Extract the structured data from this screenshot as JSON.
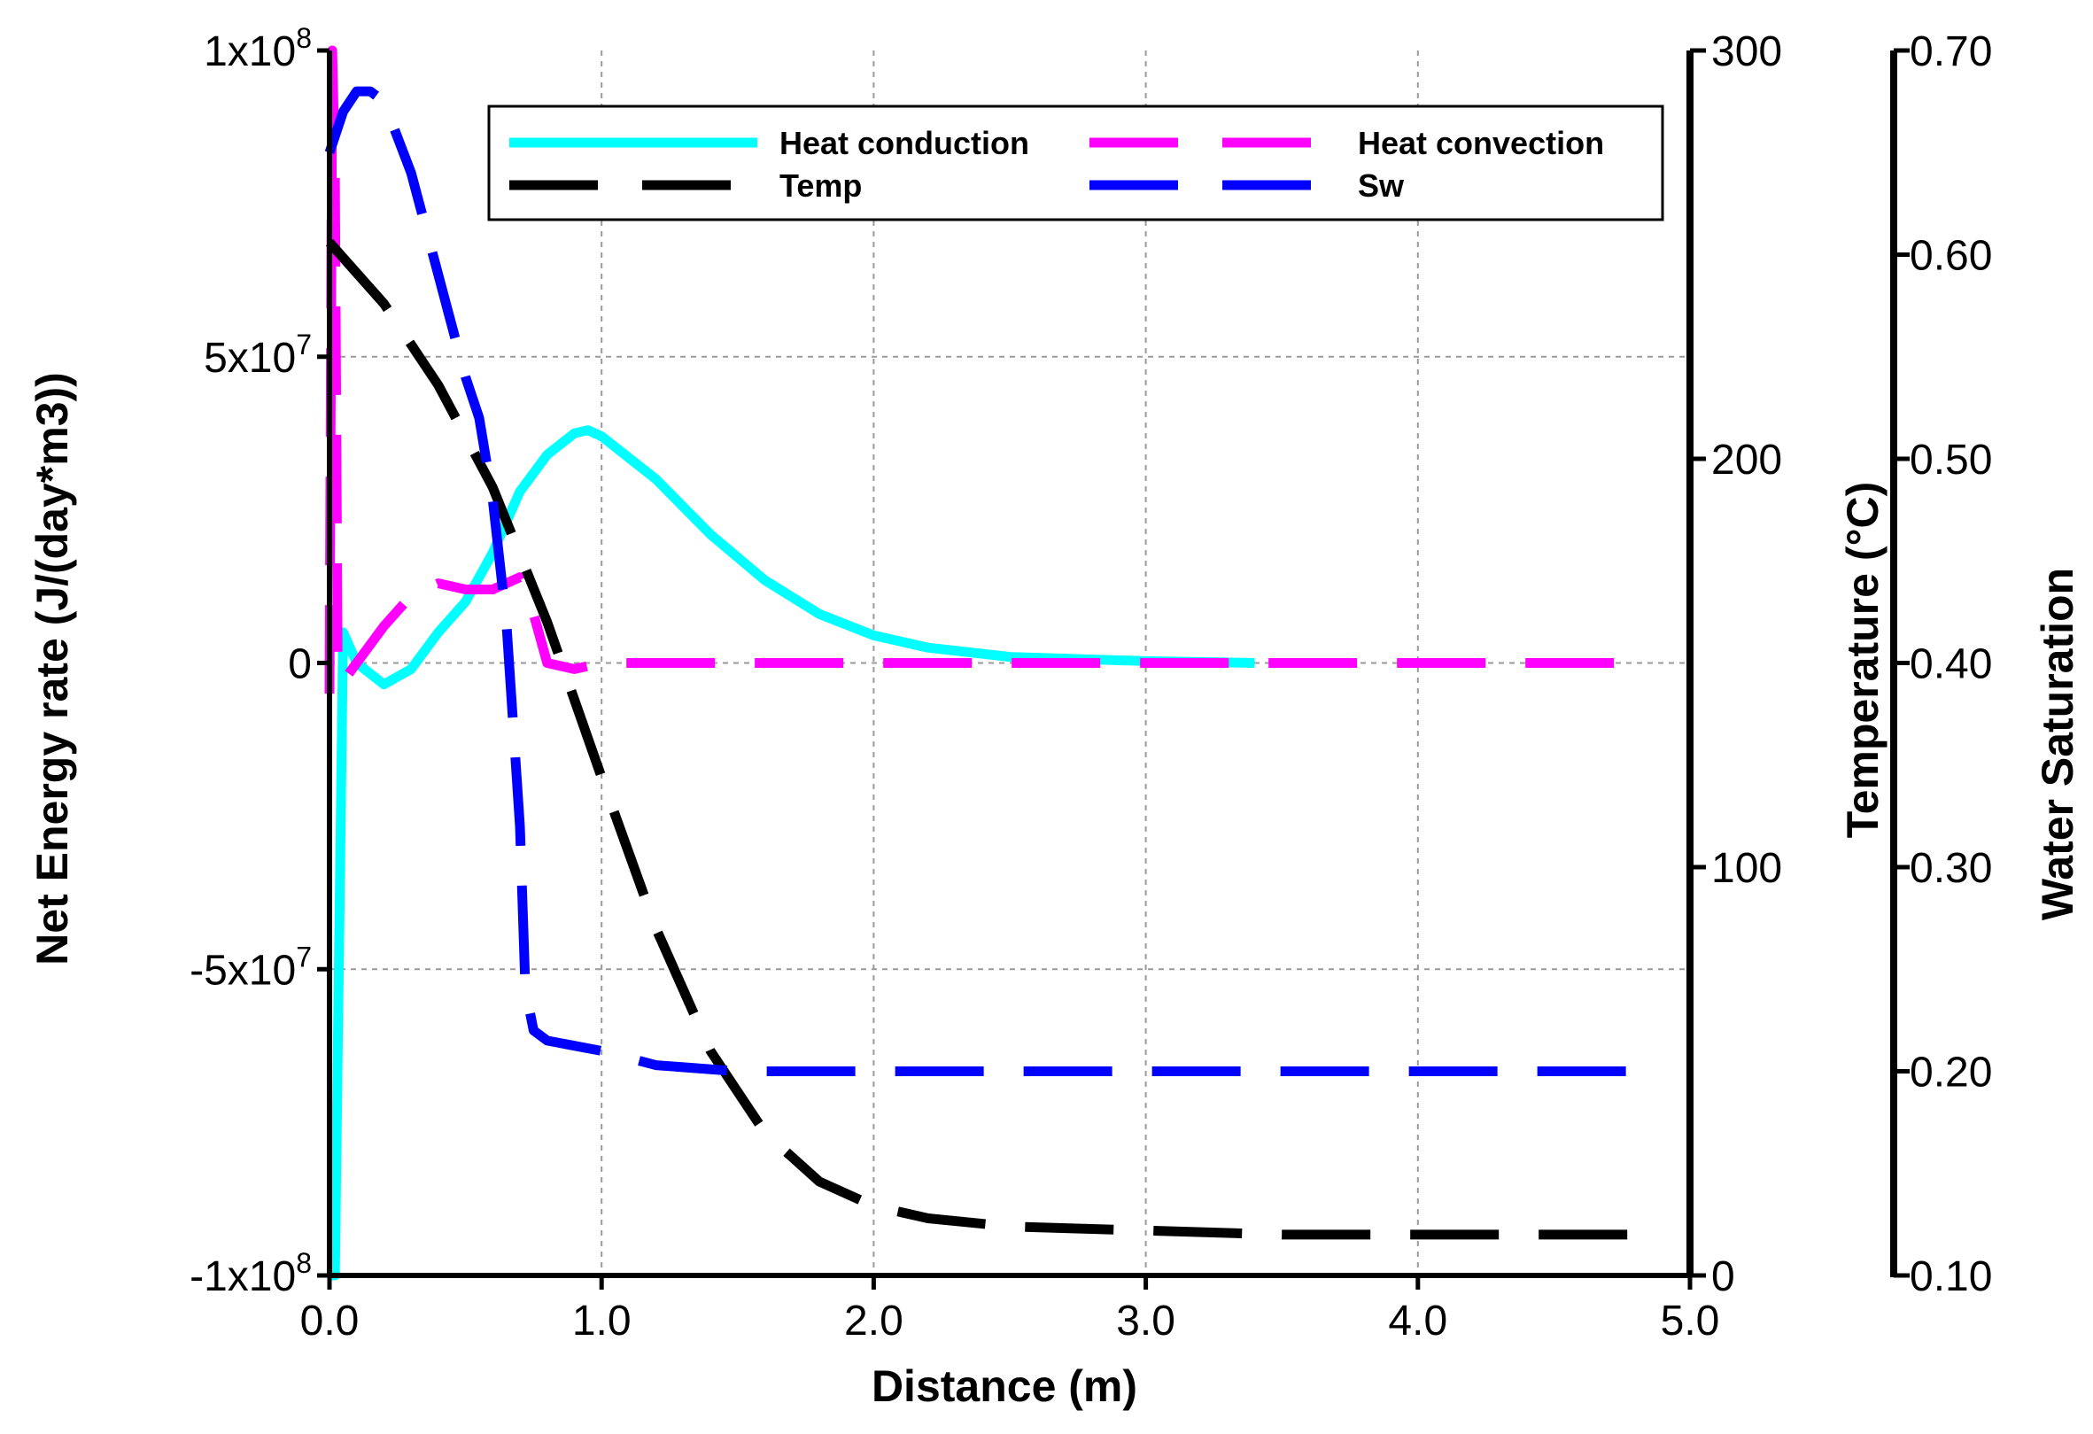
{
  "chart_data": {
    "type": "line",
    "title": "",
    "xlabel": "Distance (m)",
    "ylabel": "Net Energy rate (J/(day*m3))",
    "y2label": "Temperature (°C)",
    "y3label": "Water Saturation",
    "xlim": [
      0,
      5
    ],
    "ylim": [
      -100000000,
      100000000
    ],
    "y2lim": [
      0,
      300
    ],
    "y3lim": [
      0.1,
      0.7
    ],
    "grid": true,
    "legend_position": "top-right",
    "x_ticks": [
      "0.0",
      "1.0",
      "2.0",
      "3.0",
      "4.0",
      "5.0"
    ],
    "y_ticks": [
      {
        "value": 100000000,
        "base": "1x10",
        "exp": "8"
      },
      {
        "value": 50000000,
        "base": "5x10",
        "exp": "7"
      },
      {
        "value": 0,
        "base": "0",
        "exp": ""
      },
      {
        "value": -50000000,
        "base": "-5x10",
        "exp": "7"
      },
      {
        "value": -100000000,
        "base": "-1x10",
        "exp": "8"
      }
    ],
    "y2_ticks": [
      {
        "value": 300,
        "label": "300"
      },
      {
        "value": 200,
        "label": "200"
      },
      {
        "value": 100,
        "label": "100"
      },
      {
        "value": 0,
        "label": "0"
      }
    ],
    "y3_ticks": [
      {
        "value": 0.7,
        "label": "0.70"
      },
      {
        "value": 0.6,
        "label": "0.60"
      },
      {
        "value": 0.5,
        "label": "0.50"
      },
      {
        "value": 0.4,
        "label": "0.40"
      },
      {
        "value": 0.3,
        "label": "0.30"
      },
      {
        "value": 0.2,
        "label": "0.20"
      },
      {
        "value": 0.1,
        "label": "0.10"
      }
    ],
    "series": [
      {
        "name": "Heat conduction",
        "axis": "y",
        "color": "#00ffff",
        "dash": "solid",
        "x": [
          0.0,
          0.02,
          0.05,
          0.1,
          0.2,
          0.3,
          0.4,
          0.5,
          0.6,
          0.7,
          0.8,
          0.9,
          0.95,
          1.0,
          1.2,
          1.4,
          1.6,
          1.8,
          2.0,
          2.2,
          2.5,
          3.0,
          3.4
        ],
        "y": [
          -100000000,
          -100000000,
          5000000,
          0,
          -3500000,
          -1000000,
          5000000,
          10000000,
          18000000,
          28000000,
          34000000,
          37500000,
          38000000,
          37000000,
          30000000,
          21000000,
          13500000,
          8000000,
          4500000,
          2500000,
          1000000,
          300000,
          0
        ]
      },
      {
        "name": "Heat convection",
        "axis": "y",
        "color": "#ff00ff",
        "dash": "dashed",
        "x": [
          0.0,
          0.01,
          0.02,
          0.03,
          0.05,
          0.1,
          0.2,
          0.3,
          0.4,
          0.5,
          0.6,
          0.7,
          0.75,
          0.8,
          0.9,
          1.0,
          1.5,
          2.0,
          3.0,
          4.0,
          4.85
        ],
        "y": [
          -5000000,
          100000000,
          80000000,
          0,
          -3000000,
          0,
          6000000,
          11000000,
          13000000,
          12000000,
          12000000,
          14000000,
          8000000,
          0,
          -1000000,
          0,
          0,
          0,
          0,
          0,
          0
        ]
      },
      {
        "name": "Temp",
        "axis": "y2",
        "color": "#000000",
        "dash": "dashed",
        "x": [
          0.0,
          0.2,
          0.4,
          0.6,
          0.8,
          1.0,
          1.2,
          1.4,
          1.6,
          1.8,
          2.0,
          2.2,
          2.5,
          3.0,
          3.5,
          4.0,
          4.85
        ],
        "y": [
          253,
          238,
          218,
          193,
          160,
          122,
          85,
          55,
          35,
          23,
          17,
          14,
          12,
          11,
          10,
          10,
          10
        ]
      },
      {
        "name": "Sw",
        "axis": "y3",
        "color": "#0000ff",
        "dash": "dashed",
        "x": [
          0.0,
          0.05,
          0.1,
          0.15,
          0.2,
          0.3,
          0.4,
          0.5,
          0.55,
          0.6,
          0.65,
          0.7,
          0.72,
          0.75,
          0.8,
          1.0,
          1.2,
          1.5,
          2.0,
          3.0,
          4.0,
          4.85
        ],
        "y": [
          0.65,
          0.67,
          0.68,
          0.68,
          0.675,
          0.64,
          0.59,
          0.54,
          0.52,
          0.48,
          0.42,
          0.32,
          0.24,
          0.22,
          0.215,
          0.21,
          0.203,
          0.2,
          0.2,
          0.2,
          0.2,
          0.2
        ]
      }
    ]
  }
}
